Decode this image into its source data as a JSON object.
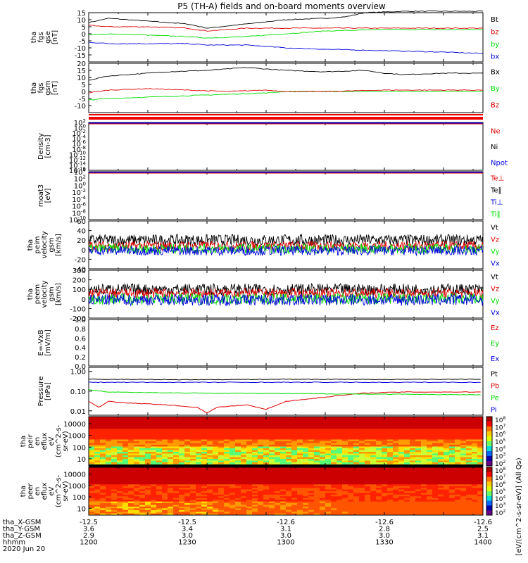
{
  "title": "P5 (TH-A) fields and on-board moments overview",
  "colors": {
    "black": "#000000",
    "red": "#dd0000",
    "green": "#00dd00",
    "blue": "#0000dd"
  },
  "chart_data": [
    {
      "type": "line",
      "name": "fgs_gse",
      "ylabel": [
        "tha",
        "fgs",
        "gse",
        "[nT]"
      ],
      "ylim": [
        -20,
        15
      ],
      "yticks": [
        -15,
        -10,
        -5,
        0,
        5,
        10,
        15
      ],
      "xlim": [
        1200,
        1400
      ],
      "series": [
        {
          "name": "Bt",
          "color": "#000000",
          "x": [
            1200,
            1210,
            1230,
            1250,
            1260,
            1280,
            1300,
            1320,
            1330,
            1340,
            1360,
            1380,
            1400
          ],
          "y": [
            8,
            11,
            9,
            7,
            4,
            7,
            10,
            11,
            12,
            15,
            16,
            16,
            16
          ]
        },
        {
          "name": "bz",
          "color": "#dd0000",
          "x": [
            1200,
            1210,
            1230,
            1250,
            1260,
            1280,
            1300,
            1320,
            1350,
            1380,
            1400
          ],
          "y": [
            6,
            5,
            5,
            4,
            2,
            4,
            4,
            4,
            4,
            4,
            4
          ]
        },
        {
          "name": "by",
          "color": "#00dd00",
          "x": [
            1200,
            1210,
            1230,
            1250,
            1260,
            1280,
            1300,
            1320,
            1350,
            1380,
            1400
          ],
          "y": [
            -1,
            0,
            -1,
            -2,
            -3,
            -2,
            0,
            2,
            3,
            3,
            3
          ]
        },
        {
          "name": "bx",
          "color": "#0000dd",
          "x": [
            1200,
            1210,
            1230,
            1250,
            1260,
            1280,
            1300,
            1320,
            1350,
            1380,
            1400
          ],
          "y": [
            -6,
            -7,
            -7,
            -7,
            -8,
            -8,
            -10,
            -11,
            -12,
            -13,
            -14
          ]
        }
      ]
    },
    {
      "type": "line",
      "name": "fgs_gsm",
      "ylabel": [
        "tha",
        "fgs",
        "gsm",
        "[nT]"
      ],
      "ylim": [
        -15,
        20
      ],
      "yticks": [
        -10,
        -5,
        0,
        5,
        10,
        15,
        20
      ],
      "xlim": [
        1200,
        1400
      ],
      "series": [
        {
          "name": "Bx",
          "color": "#000000",
          "x": [
            1200,
            1210,
            1220,
            1240,
            1260,
            1280,
            1300,
            1320,
            1340,
            1350,
            1360,
            1380,
            1400
          ],
          "y": [
            8,
            11,
            12,
            14,
            15,
            17,
            15,
            14,
            15,
            13,
            12,
            13,
            13
          ]
        },
        {
          "name": "By",
          "color": "#00dd00",
          "x": [
            1200,
            1210,
            1230,
            1250,
            1270,
            1290,
            1300,
            1320,
            1350,
            1380,
            1400
          ],
          "y": [
            -6,
            -5,
            -4,
            -3,
            -2,
            -1,
            0,
            0,
            0,
            0,
            0
          ]
        },
        {
          "name": "Bz",
          "color": "#dd0000",
          "x": [
            1200,
            1210,
            1230,
            1250,
            1270,
            1290,
            1300,
            1320,
            1350,
            1380,
            1400
          ],
          "y": [
            -1,
            1,
            2,
            1,
            0,
            1,
            0,
            0,
            1,
            1,
            1
          ]
        }
      ]
    },
    {
      "type": "line",
      "name": "density",
      "ylabel": [
        "Density",
        "[cm-3]"
      ],
      "yticks": [
        "10^2",
        "10^0",
        "10^-2",
        "10^-4",
        "10^-6",
        "10^-8",
        "10^-10",
        "10^-12",
        "10^-14",
        "10^-16"
      ],
      "legend": [
        {
          "name": "Ne",
          "color": "#dd0000"
        },
        {
          "name": "Ni",
          "color": "#000000"
        },
        {
          "name": "Npot",
          "color": "#0000dd"
        }
      ]
    },
    {
      "type": "line",
      "name": "temperature",
      "ylabel": [
        "moat3",
        "[eV]"
      ],
      "yticks": [
        "10^4",
        "10^2",
        "10^0",
        "10^-2",
        "10^-4",
        "10^-6",
        "10^-8",
        "10^-10"
      ],
      "legend": [
        {
          "name": "Te⊥",
          "color": "#dd0000"
        },
        {
          "name": "Te‖",
          "color": "#000000"
        },
        {
          "name": "Ti⊥",
          "color": "#0000dd"
        },
        {
          "name": "Ti‖",
          "color": "#00dd00"
        }
      ]
    },
    {
      "type": "line",
      "name": "peim_velocity",
      "ylabel": [
        "tha",
        "peim",
        "velocity",
        "gsm",
        "[km/s]"
      ],
      "ylim": [
        -40,
        60
      ],
      "yticks": [
        -40,
        -20,
        0,
        20,
        40,
        60
      ],
      "xlim": [
        1200,
        1400
      ],
      "series": [
        {
          "name": "Vt",
          "color": "#000000",
          "base": 20,
          "amp": 12
        },
        {
          "name": "Vz",
          "color": "#dd0000",
          "base": 8,
          "amp": 10
        },
        {
          "name": "Vy",
          "color": "#00dd00",
          "base": 2,
          "amp": 10
        },
        {
          "name": "Vx",
          "color": "#0000dd",
          "base": -2,
          "amp": 10
        }
      ]
    },
    {
      "type": "line",
      "name": "peem_velocity",
      "ylabel": [
        "tha",
        "peem",
        "velocity",
        "gsm",
        "[km/s]"
      ],
      "ylim": [
        -200,
        300
      ],
      "yticks": [
        -200,
        -100,
        0,
        100,
        200,
        300
      ],
      "xlim": [
        1200,
        1400
      ],
      "series": [
        {
          "name": "Vt",
          "color": "#000000",
          "base": 100,
          "amp": 60
        },
        {
          "name": "Vz",
          "color": "#dd0000",
          "base": 60,
          "amp": 50
        },
        {
          "name": "Vy",
          "color": "#00dd00",
          "base": 0,
          "amp": 60
        },
        {
          "name": "Vx",
          "color": "#0000dd",
          "base": -10,
          "amp": 60
        }
      ]
    },
    {
      "type": "line",
      "name": "efield",
      "ylabel": [
        "E=-VxB",
        "[mV/m]"
      ],
      "ylim": [
        0.0,
        1.0
      ],
      "yticks": [
        "0.0",
        "0.2",
        "0.4",
        "0.6",
        "0.8",
        "1.0"
      ],
      "legend": [
        {
          "name": "Ez",
          "color": "#dd0000"
        },
        {
          "name": "Ey",
          "color": "#00dd00"
        },
        {
          "name": "Ex",
          "color": "#0000dd"
        }
      ]
    },
    {
      "type": "line",
      "name": "pressure",
      "ylabel": [
        "Pressure",
        "[nPa]"
      ],
      "scale": "log",
      "ylim": [
        0.006,
        1.6
      ],
      "yticks": [
        "0.01",
        "0.10",
        "1.00"
      ],
      "xlim": [
        1200,
        1400
      ],
      "series": [
        {
          "name": "Pt",
          "color": "#000000",
          "x": [
            1200,
            1250,
            1300,
            1350,
            1400
          ],
          "y": [
            0.4,
            0.38,
            0.4,
            0.39,
            0.4
          ]
        },
        {
          "name": "Pb",
          "color": "#dd0000",
          "x": [
            1200,
            1205,
            1210,
            1220,
            1240,
            1255,
            1260,
            1265,
            1280,
            1290,
            1300,
            1320,
            1340,
            1360,
            1380,
            1400
          ],
          "y": [
            0.03,
            0.015,
            0.03,
            0.025,
            0.02,
            0.015,
            0.008,
            0.015,
            0.02,
            0.012,
            0.03,
            0.05,
            0.08,
            0.09,
            0.09,
            0.09
          ]
        },
        {
          "name": "Pe",
          "color": "#00dd00",
          "x": [
            1200,
            1210,
            1250,
            1300,
            1350,
            1400
          ],
          "y": [
            0.12,
            0.09,
            0.08,
            0.075,
            0.07,
            0.065
          ]
        },
        {
          "name": "Pi",
          "color": "#0000dd",
          "x": [
            1200,
            1250,
            1300,
            1350,
            1400
          ],
          "y": [
            0.28,
            0.28,
            0.28,
            0.28,
            0.28
          ]
        }
      ]
    },
    {
      "type": "heatmap",
      "name": "peir_spectrogram",
      "ylabel": [
        "tha",
        "peir",
        "en",
        "eflux",
        "eV",
        "(cm^2-s-",
        "sr-eV)"
      ],
      "yticks": [
        "10",
        "100",
        "1000",
        "10000"
      ]
    },
    {
      "type": "heatmap",
      "name": "peer_spectrogram",
      "ylabel": [
        "tha",
        "peer",
        "en",
        "eflux",
        "eV",
        "(cm^2-s-",
        "sr-eV)"
      ],
      "yticks": [
        "10",
        "100",
        "1000",
        "10000"
      ]
    }
  ],
  "colorbar": {
    "label": "[eV/(cm^2-s-sr-eV)] (All Qs)",
    "ticks_top": [
      "10^8",
      "10^7",
      "10^6",
      "10^5",
      "10^4",
      "10^3",
      "10^2"
    ],
    "ticks_bottom": [
      "10^8",
      "10^7",
      "10^6",
      "10^5",
      "10^4",
      "10^3",
      "10^2"
    ]
  },
  "x_axis": {
    "tick_labels": [
      {
        "x": "-12.5",
        "y": "3.6",
        "z": "2.9",
        "hhmm": "1200"
      },
      {
        "x": "-12.5",
        "y": "3.4",
        "z": "3.0",
        "hhmm": "1230"
      },
      {
        "x": "-12.6",
        "y": "3.1",
        "z": "3.0",
        "hhmm": "1300"
      },
      {
        "x": "-12.6",
        "y": "2.8",
        "z": "3.0",
        "hhmm": "1330"
      },
      {
        "x": "-12.6",
        "y": "2.5",
        "z": "3.1",
        "hhmm": "1400"
      }
    ],
    "row_labels": [
      "tha_X-GSM",
      "tha_Y-GSM",
      "tha_Z-GSM",
      "hhmm"
    ],
    "date": "2020 Jun 20"
  }
}
